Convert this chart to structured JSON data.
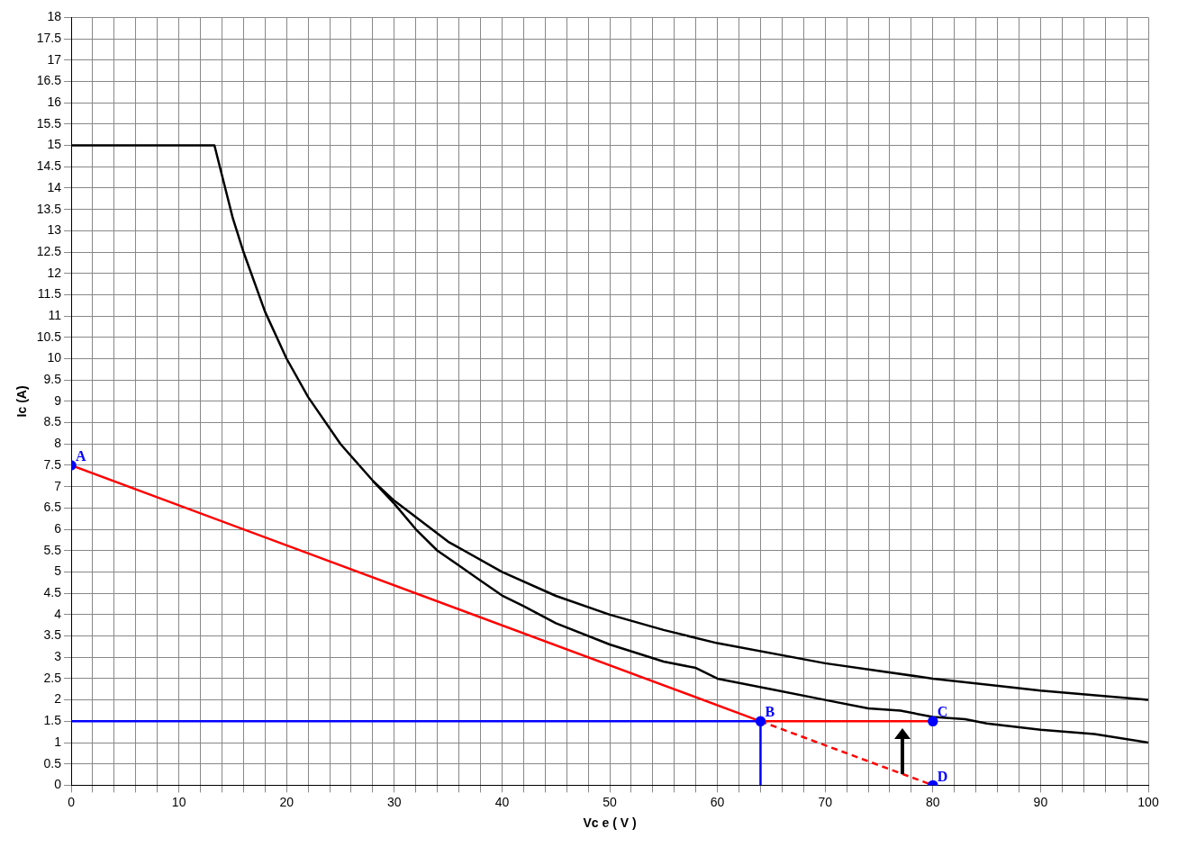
{
  "chart_data": {
    "type": "line",
    "xlabel": "Vc e ( V )",
    "ylabel": "Ic (A)",
    "xlim": [
      0,
      100
    ],
    "ylim": [
      0,
      18
    ],
    "xticks": [
      0,
      {
        "value": 2,
        "label": null
      },
      {
        "value": 4,
        "label": null
      },
      {
        "value": 6,
        "label": null
      },
      {
        "value": 8,
        "label": null
      },
      10,
      {
        "value": 12,
        "label": null
      },
      {
        "value": 14,
        "label": null
      },
      {
        "value": 16,
        "label": null
      },
      {
        "value": 18,
        "label": null
      },
      20,
      {
        "value": 22,
        "label": null
      },
      {
        "value": 24,
        "label": null
      },
      {
        "value": 26,
        "label": null
      },
      {
        "value": 28,
        "label": null
      },
      30,
      {
        "value": 32,
        "label": null
      },
      {
        "value": 34,
        "label": null
      },
      {
        "value": 36,
        "label": null
      },
      {
        "value": 38,
        "label": null
      },
      40,
      {
        "value": 42,
        "label": null
      },
      {
        "value": 44,
        "label": null
      },
      {
        "value": 46,
        "label": null
      },
      {
        "value": 48,
        "label": null
      },
      50,
      {
        "value": 52,
        "label": null
      },
      {
        "value": 54,
        "label": null
      },
      {
        "value": 56,
        "label": null
      },
      {
        "value": 58,
        "label": null
      },
      60,
      {
        "value": 62,
        "label": null
      },
      {
        "value": 64,
        "label": null
      },
      {
        "value": 66,
        "label": null
      },
      {
        "value": 68,
        "label": null
      },
      70,
      {
        "value": 72,
        "label": null
      },
      {
        "value": 74,
        "label": null
      },
      {
        "value": 76,
        "label": null
      },
      {
        "value": 78,
        "label": null
      },
      80,
      {
        "value": 82,
        "label": null
      },
      {
        "value": 84,
        "label": null
      },
      {
        "value": 86,
        "label": null
      },
      {
        "value": 88,
        "label": null
      },
      90,
      {
        "value": 92,
        "label": null
      },
      {
        "value": 94,
        "label": null
      },
      {
        "value": 96,
        "label": null
      },
      {
        "value": 98,
        "label": null
      },
      100
    ],
    "yticks": [
      0,
      0.5,
      1,
      1.5,
      2,
      2.5,
      3,
      3.5,
      4,
      4.5,
      5,
      5.5,
      6,
      6.5,
      7,
      7.5,
      8,
      8.5,
      9,
      9.5,
      10,
      10.5,
      11,
      11.5,
      12,
      12.5,
      13,
      13.5,
      14,
      14.5,
      15,
      15.5,
      16,
      16.5,
      17,
      17.5,
      18
    ],
    "grid": true,
    "marker": "none",
    "line_style": "solid",
    "series": [
      {
        "color": "#000000",
        "x": [
          0,
          13.3,
          14,
          15,
          16,
          18,
          20,
          22,
          25,
          28,
          30,
          35,
          40,
          45,
          50,
          55,
          60,
          70,
          80,
          90,
          100
        ],
        "values": [
          15,
          15,
          14.3,
          13.3,
          12.5,
          11.1,
          10,
          9.1,
          8,
          7.14,
          6.67,
          5.71,
          5,
          4.44,
          4,
          3.64,
          3.33,
          2.86,
          2.5,
          2.22,
          2
        ]
      },
      {
        "color": "#000000",
        "x": [
          28,
          30,
          32,
          34,
          36,
          38,
          40,
          42,
          45,
          50,
          55,
          58,
          60,
          65,
          70,
          74,
          77,
          80,
          83,
          85,
          90,
          95,
          100
        ],
        "values": [
          7.14,
          6.6,
          6.0,
          5.5,
          5.15,
          4.8,
          4.45,
          4.2,
          3.8,
          3.3,
          2.9,
          2.75,
          2.5,
          2.25,
          2.0,
          1.8,
          1.75,
          1.6,
          1.55,
          1.45,
          1.3,
          1.2,
          1.0
        ]
      },
      {
        "color": "#ff0000",
        "x": [
          0,
          64
        ],
        "values": [
          7.5,
          1.5
        ]
      },
      {
        "color": "#ff0000",
        "x": [
          64,
          80
        ],
        "values": [
          1.5,
          0
        ],
        "line_style": "dashed"
      },
      {
        "color": "#ff0000",
        "x": [
          64,
          80
        ],
        "values": [
          1.5,
          1.5
        ]
      },
      {
        "color": "#0000ff",
        "x": [
          0,
          64
        ],
        "values": [
          1.5,
          1.5
        ]
      },
      {
        "color": "#0000ff",
        "x": [
          64,
          64
        ],
        "values": [
          0,
          1.5
        ]
      },
      {
        "type": "scatter",
        "color": "#0000ff",
        "marker": "circle",
        "x": [
          0,
          64,
          80,
          80
        ],
        "values": [
          7.5,
          1.5,
          1.5,
          0
        ]
      }
    ],
    "annotations": [
      {
        "text": "A",
        "x": 0,
        "y": 7.5
      },
      {
        "text": "B",
        "x": 64,
        "y": 1.5
      },
      {
        "text": "C",
        "x": 80,
        "y": 1.5
      },
      {
        "text": "D",
        "x": 80,
        "y": 0
      }
    ]
  }
}
